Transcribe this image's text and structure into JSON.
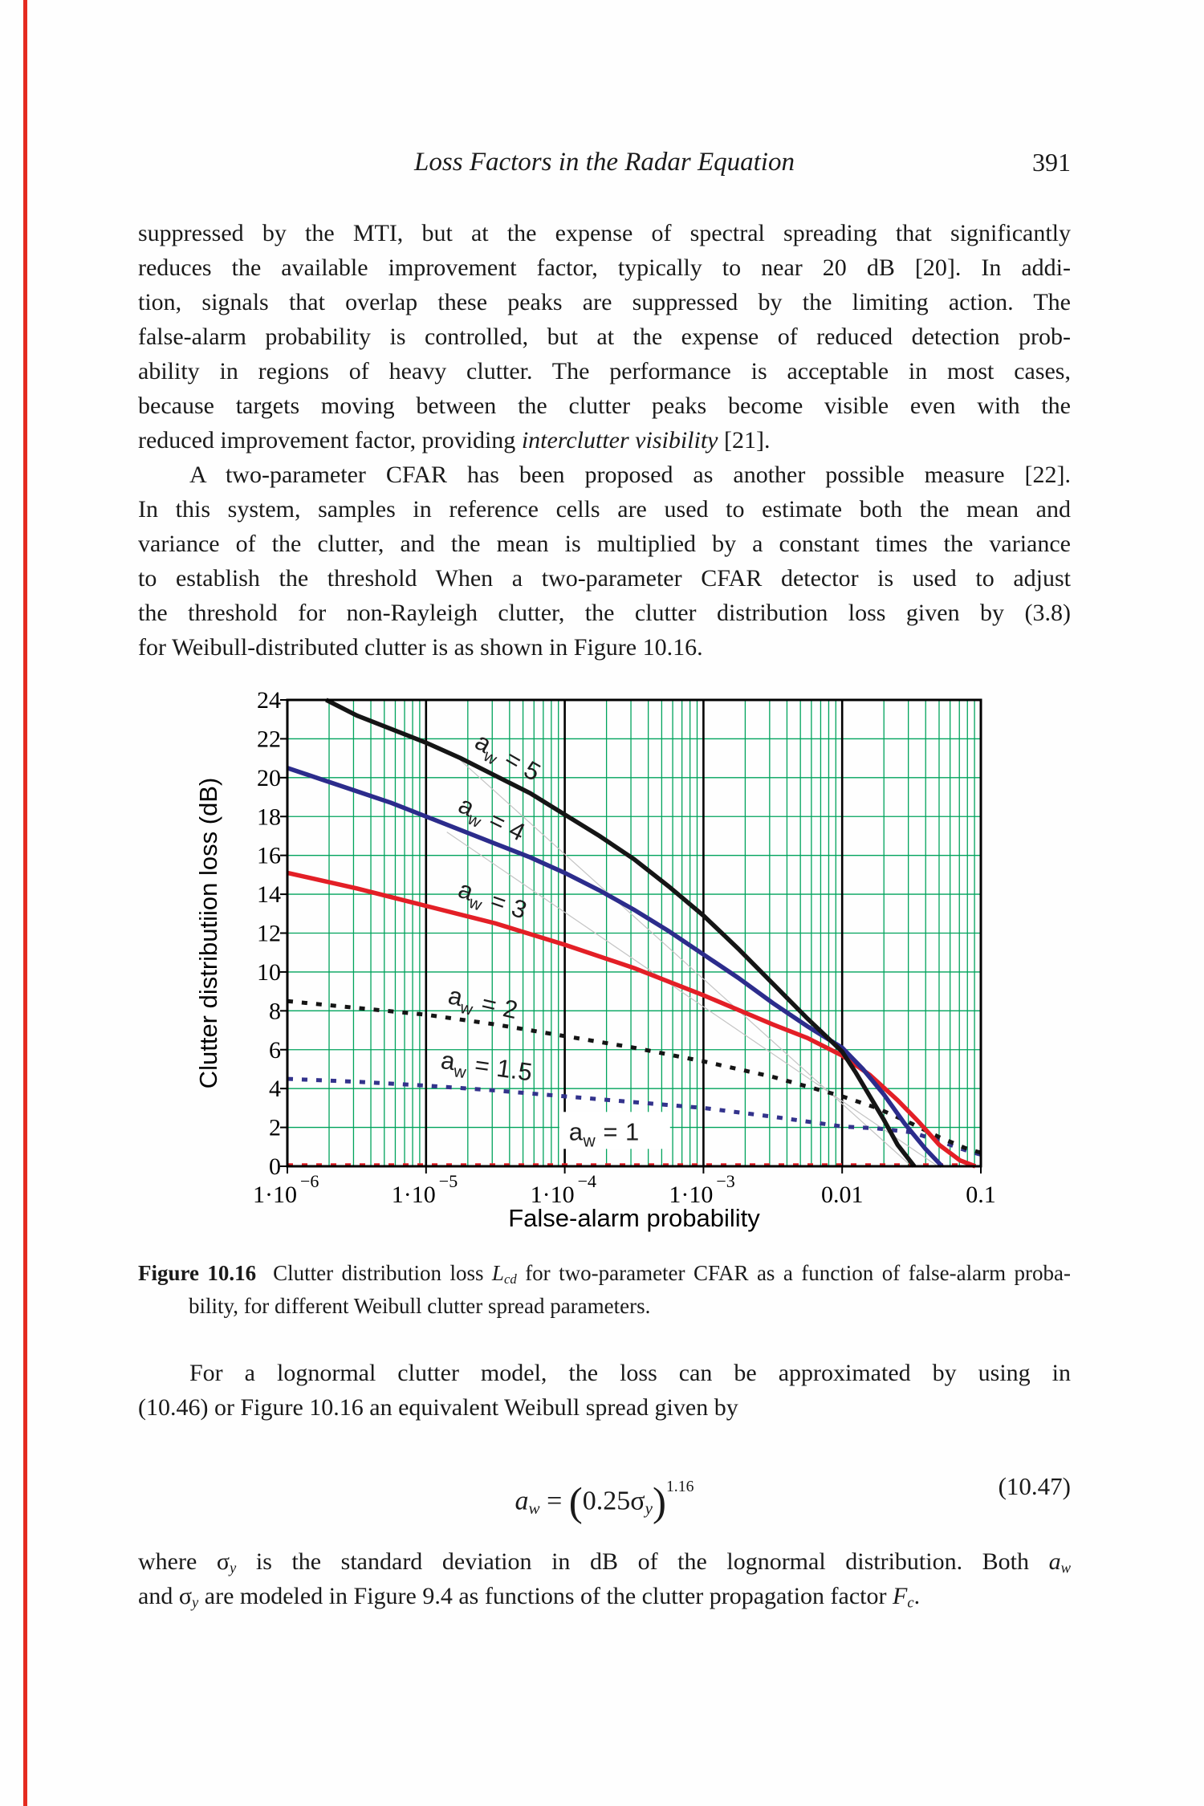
{
  "header": {
    "title": "Loss Factors in the Radar Equation",
    "page_number": "391"
  },
  "paragraphs": {
    "p1": {
      "lines": [
        {
          "just": true,
          "segs": [
            {
              "t": "suppressed by the MTI, but at the expense of spectral spreading that significantly"
            }
          ]
        },
        {
          "just": true,
          "segs": [
            {
              "t": "reduces the available improvement factor, typically to near 20 dB [20]. In addi-"
            }
          ]
        },
        {
          "just": true,
          "segs": [
            {
              "t": "tion, signals that overlap these peaks are suppressed by the limiting action. The"
            }
          ]
        },
        {
          "just": true,
          "segs": [
            {
              "t": "false-alarm probability is controlled, but at the expense of reduced detection prob-"
            }
          ]
        },
        {
          "just": true,
          "segs": [
            {
              "t": "ability in regions of heavy clutter. The performance is acceptable in most cases,"
            }
          ]
        },
        {
          "just": true,
          "segs": [
            {
              "t": "because targets moving between the clutter peaks become visible even with the"
            }
          ]
        },
        {
          "just": false,
          "segs": [
            {
              "t": "reduced improvement factor, providing "
            },
            {
              "t": "interclutter visibility",
              "i": true
            },
            {
              "t": " [21]."
            }
          ]
        }
      ]
    },
    "p2": {
      "lines": [
        {
          "just": true,
          "indent": true,
          "segs": [
            {
              "t": "A two-parameter CFAR has been proposed as another possible measure [22]."
            }
          ]
        },
        {
          "just": true,
          "segs": [
            {
              "t": "In this system, samples in reference cells are used to estimate both the mean and"
            }
          ]
        },
        {
          "just": true,
          "segs": [
            {
              "t": "variance of the clutter, and the mean is multiplied by a constant times the variance"
            }
          ]
        },
        {
          "just": true,
          "segs": [
            {
              "t": "to establish the threshold When a two-parameter CFAR detector is used to adjust"
            }
          ]
        },
        {
          "just": true,
          "segs": [
            {
              "t": "the threshold for non-Rayleigh clutter, the clutter distribution loss given by (3.8)"
            }
          ]
        },
        {
          "just": false,
          "segs": [
            {
              "t": "for Weibull-distributed clutter is as shown in Figure 10.16."
            }
          ]
        }
      ]
    },
    "p3": {
      "lines": [
        {
          "just": true,
          "indent": true,
          "segs": [
            {
              "t": "For a lognormal clutter model, the loss can be approximated by using in"
            }
          ]
        },
        {
          "just": false,
          "segs": [
            {
              "t": "(10.46) or Figure 10.16 an equivalent Weibull spread given by"
            }
          ]
        }
      ]
    },
    "p4": {
      "lines": [
        {
          "just": true,
          "segs": [
            {
              "t": "where "
            },
            {
              "t": "σ"
            },
            {
              "t": "y",
              "i": true,
              "sub": true
            },
            {
              "t": " is the standard deviation in dB of the lognormal distribution. Both "
            },
            {
              "t": "a",
              "i": true
            },
            {
              "t": "w",
              "i": true,
              "sub": true
            }
          ]
        },
        {
          "just": false,
          "segs": [
            {
              "t": "and "
            },
            {
              "t": "σ"
            },
            {
              "t": "y",
              "i": true,
              "sub": true
            },
            {
              "t": " are modeled in Figure 9.4 as functions of the clutter propagation factor "
            },
            {
              "t": "F",
              "i": true
            },
            {
              "t": "c",
              "i": true,
              "sub": true
            },
            {
              "t": "."
            }
          ]
        }
      ]
    }
  },
  "caption": {
    "lines": [
      {
        "just": true,
        "segs": [
          {
            "t": "Figure 10.16",
            "b": true
          },
          {
            "t": "  Clutter distribution loss "
          },
          {
            "t": "L",
            "i": true
          },
          {
            "t": "cd",
            "i": true,
            "sub": true
          },
          {
            "t": " for two-parameter CFAR as a function of false-alarm proba-"
          }
        ]
      },
      {
        "just": false,
        "indent": true,
        "segs": [
          {
            "t": "bility, for different Weibull clutter spread parameters."
          }
        ]
      }
    ]
  },
  "equation": {
    "segments": [
      {
        "t": "a",
        "i": true
      },
      {
        "t": "w",
        "i": true,
        "sub": true
      },
      {
        "t": " = "
      },
      {
        "t": "(",
        "lg": true
      },
      {
        "t": "0.25"
      },
      {
        "t": "σ"
      },
      {
        "t": "y",
        "i": true,
        "sub": true
      },
      {
        "t": ")",
        "lg": true
      },
      {
        "t": "1.16",
        "hi": true
      }
    ],
    "number": "(10.47)"
  },
  "chart_data": {
    "type": "line",
    "xlabel": "False-alarm probability",
    "ylabel": "Clutter distributiion loss (dB)",
    "x_scale": "log10",
    "xlim": [
      -6,
      -1
    ],
    "ylim": [
      0,
      24
    ],
    "y_ticks": [
      0,
      2,
      4,
      6,
      8,
      10,
      12,
      14,
      16,
      18,
      20,
      22,
      24
    ],
    "x_tick_labels": [
      {
        "main": "1·10",
        "sup": "−6"
      },
      {
        "main": "1·10",
        "sup": "−5"
      },
      {
        "main": "1·10",
        "sup": "−4"
      },
      {
        "main": "1·10",
        "sup": "−3"
      },
      {
        "main": "0.01"
      },
      {
        "main": "0.1"
      }
    ],
    "grid_color": "#00a35c",
    "decade_line_color": "#000000",
    "decorations": {
      "color": "#c4c4c4",
      "ref_lines": [
        {
          "x1": -4.8,
          "y1": 21.2,
          "x2": -1.5,
          "y2": 0
        },
        {
          "x1": -4.85,
          "y1": 17.2,
          "x2": -1.31,
          "y2": 0
        }
      ]
    },
    "series": [
      {
        "name": "aw1",
        "color": "#e31f26",
        "style": "dotted",
        "label": {
          "base": "a",
          "sub": "w",
          "eq": " = 1",
          "x10": -3.97,
          "y": 1.35,
          "rot": 0,
          "boxed": true
        },
        "points": [
          [
            -6,
            0.05
          ],
          [
            -1,
            0.05
          ]
        ]
      },
      {
        "name": "aw1.5",
        "color": "#33338c",
        "style": "dotted",
        "label": {
          "base": "a",
          "sub": "w",
          "eq": " = 1.5",
          "x10": -4.9,
          "y": 5.05,
          "rot": 8,
          "boxed": false
        },
        "points": [
          [
            -6,
            4.5
          ],
          [
            -5.5,
            4.35
          ],
          [
            -5,
            4.15
          ],
          [
            -4.5,
            3.9
          ],
          [
            -4,
            3.6
          ],
          [
            -3.5,
            3.3
          ],
          [
            -3,
            3.0
          ],
          [
            -2.5,
            2.55
          ],
          [
            -2,
            2.05
          ],
          [
            -1.75,
            1.95
          ],
          [
            -1.5,
            1.75
          ],
          [
            -1.3,
            1.3
          ],
          [
            -1.1,
            0.8
          ],
          [
            -1,
            0.6
          ]
        ]
      },
      {
        "name": "aw2",
        "color": "#151515",
        "style": "dotted",
        "label": {
          "base": "a",
          "sub": "w",
          "eq": " = 2",
          "x10": -4.85,
          "y": 8.4,
          "rot": 13,
          "boxed": false
        },
        "points": [
          [
            -6,
            8.5
          ],
          [
            -5.5,
            8.15
          ],
          [
            -5,
            7.8
          ],
          [
            -4.5,
            7.3
          ],
          [
            -4,
            6.7
          ],
          [
            -3.5,
            6.1
          ],
          [
            -3,
            5.4
          ],
          [
            -2.5,
            4.6
          ],
          [
            -2,
            3.6
          ],
          [
            -1.75,
            3.0
          ],
          [
            -1.5,
            2.2
          ],
          [
            -1.3,
            1.5
          ],
          [
            -1.1,
            0.9
          ],
          [
            -1,
            0.7
          ]
        ]
      },
      {
        "name": "aw3",
        "color": "#e31f26",
        "style": "solid",
        "label": {
          "base": "a",
          "sub": "w",
          "eq": " = 3",
          "x10": -4.78,
          "y": 13.9,
          "rot": 19,
          "boxed": false
        },
        "points": [
          [
            -6,
            15.1
          ],
          [
            -5.5,
            14.3
          ],
          [
            -5,
            13.4
          ],
          [
            -4.5,
            12.5
          ],
          [
            -4,
            11.4
          ],
          [
            -3.5,
            10.2
          ],
          [
            -3,
            8.8
          ],
          [
            -2.5,
            7.3
          ],
          [
            -2.25,
            6.6
          ],
          [
            -2,
            5.7
          ],
          [
            -1.8,
            4.7
          ],
          [
            -1.6,
            3.4
          ],
          [
            -1.45,
            2.3
          ],
          [
            -1.3,
            1.1
          ],
          [
            -1.15,
            0.3
          ],
          [
            -1.04,
            0
          ]
        ]
      },
      {
        "name": "aw4",
        "color": "#2c2c8c",
        "style": "solid",
        "label": {
          "base": "a",
          "sub": "w",
          "eq": " = 4",
          "x10": -4.78,
          "y": 18.3,
          "rot": 26,
          "boxed": false
        },
        "points": [
          [
            -6,
            20.5
          ],
          [
            -5.75,
            19.9
          ],
          [
            -5.5,
            19.3
          ],
          [
            -5.25,
            18.7
          ],
          [
            -5,
            18.0
          ],
          [
            -4.75,
            17.3
          ],
          [
            -4.5,
            16.6
          ],
          [
            -4.25,
            15.9
          ],
          [
            -4,
            15.1
          ],
          [
            -3.75,
            14.2
          ],
          [
            -3.5,
            13.2
          ],
          [
            -3.25,
            12.1
          ],
          [
            -3,
            10.9
          ],
          [
            -2.75,
            9.7
          ],
          [
            -2.5,
            8.4
          ],
          [
            -2.25,
            7.2
          ],
          [
            -2,
            6.1
          ],
          [
            -1.85,
            5.0
          ],
          [
            -1.7,
            3.7
          ],
          [
            -1.55,
            2.2
          ],
          [
            -1.4,
            0.9
          ],
          [
            -1.28,
            0
          ]
        ]
      },
      {
        "name": "aw5",
        "color": "#151515",
        "style": "solid",
        "label": {
          "base": "a",
          "sub": "w",
          "eq": " = 5",
          "x10": -4.66,
          "y": 21.6,
          "rot": 30,
          "boxed": false
        },
        "points": [
          [
            -5.72,
            24
          ],
          [
            -5.5,
            23.2
          ],
          [
            -5.25,
            22.5
          ],
          [
            -5,
            21.8
          ],
          [
            -4.75,
            21.0
          ],
          [
            -4.5,
            20.1
          ],
          [
            -4.25,
            19.2
          ],
          [
            -4,
            18.1
          ],
          [
            -3.75,
            17.0
          ],
          [
            -3.5,
            15.8
          ],
          [
            -3.25,
            14.4
          ],
          [
            -3,
            12.9
          ],
          [
            -2.75,
            11.2
          ],
          [
            -2.5,
            9.4
          ],
          [
            -2.25,
            7.6
          ],
          [
            -2,
            5.9
          ],
          [
            -1.9,
            4.8
          ],
          [
            -1.8,
            3.6
          ],
          [
            -1.7,
            2.4
          ],
          [
            -1.6,
            1.1
          ],
          [
            -1.48,
            0
          ]
        ]
      }
    ]
  }
}
